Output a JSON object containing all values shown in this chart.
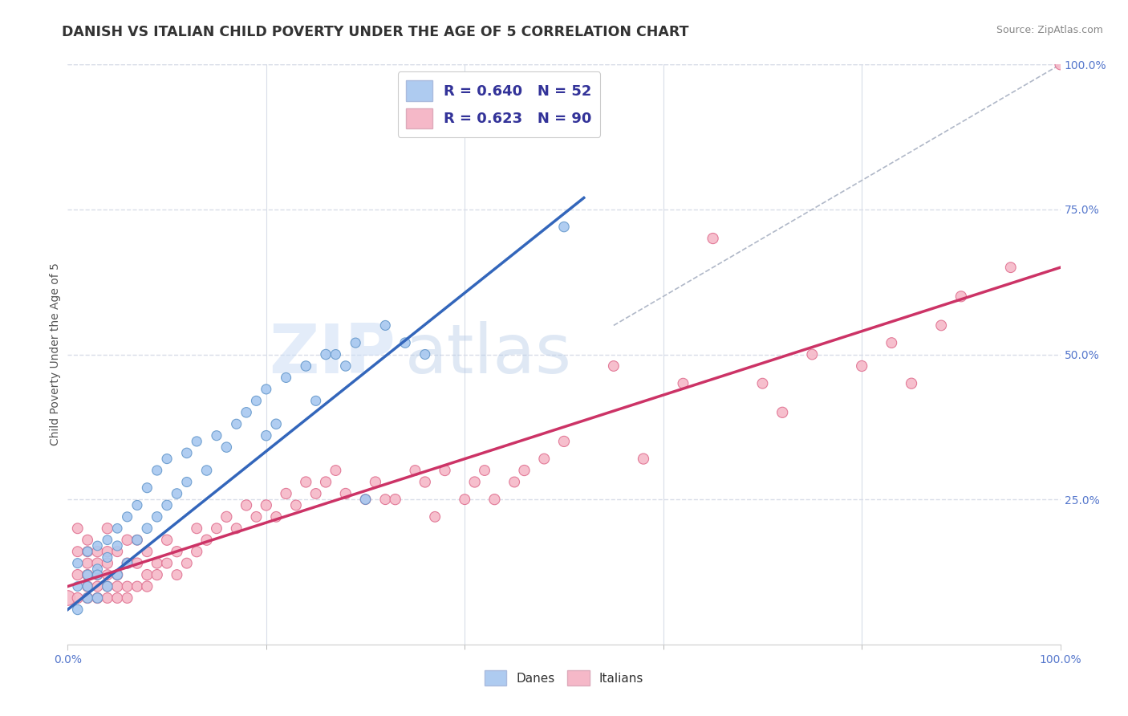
{
  "title": "DANISH VS ITALIAN CHILD POVERTY UNDER THE AGE OF 5 CORRELATION CHART",
  "source": "Source: ZipAtlas.com",
  "ylabel": "Child Poverty Under the Age of 5",
  "xlim": [
    0,
    1
  ],
  "ylim": [
    0,
    1
  ],
  "xtick_labels": [
    "0.0%",
    "100.0%"
  ],
  "xtick_positions": [
    0,
    1
  ],
  "ytick_labels": [
    "25.0%",
    "50.0%",
    "75.0%",
    "100.0%"
  ],
  "ytick_positions": [
    0.25,
    0.5,
    0.75,
    1.0
  ],
  "legend_items": [
    {
      "label": "R = 0.640   N = 52",
      "color": "#aecbf0"
    },
    {
      "label": "R = 0.623   N = 90",
      "color": "#f5b8c8"
    }
  ],
  "bottom_legend": [
    {
      "label": "Danes",
      "color": "#aecbf0"
    },
    {
      "label": "Italians",
      "color": "#f5b8c8"
    }
  ],
  "danes_color": "#a8c8f0",
  "danes_edge_color": "#6699cc",
  "italians_color": "#f5b8c8",
  "italians_edge_color": "#e07090",
  "danes_line_color": "#3366bb",
  "italians_line_color": "#cc3366",
  "ref_line_color": "#b0b8c8",
  "danes_line_x0": 0.0,
  "danes_line_x1": 0.52,
  "danes_line_y0": 0.06,
  "danes_line_y1": 0.77,
  "italians_line_x0": 0.0,
  "italians_line_x1": 1.0,
  "italians_line_y0": 0.1,
  "italians_line_y1": 0.65,
  "ref_line_x0": 0.55,
  "ref_line_x1": 1.0,
  "ref_line_y0": 0.55,
  "ref_line_y1": 1.0,
  "danes_scatter_x": [
    0.01,
    0.01,
    0.01,
    0.02,
    0.02,
    0.02,
    0.02,
    0.03,
    0.03,
    0.03,
    0.03,
    0.04,
    0.04,
    0.04,
    0.05,
    0.05,
    0.05,
    0.06,
    0.06,
    0.07,
    0.07,
    0.08,
    0.08,
    0.09,
    0.09,
    0.1,
    0.1,
    0.11,
    0.12,
    0.12,
    0.13,
    0.14,
    0.15,
    0.16,
    0.17,
    0.18,
    0.19,
    0.2,
    0.2,
    0.21,
    0.22,
    0.24,
    0.25,
    0.26,
    0.27,
    0.28,
    0.29,
    0.3,
    0.32,
    0.34,
    0.36,
    0.5
  ],
  "danes_scatter_y": [
    0.06,
    0.1,
    0.14,
    0.08,
    0.12,
    0.16,
    0.1,
    0.08,
    0.13,
    0.17,
    0.12,
    0.1,
    0.15,
    0.18,
    0.12,
    0.17,
    0.2,
    0.14,
    0.22,
    0.18,
    0.24,
    0.2,
    0.27,
    0.22,
    0.3,
    0.24,
    0.32,
    0.26,
    0.28,
    0.33,
    0.35,
    0.3,
    0.36,
    0.34,
    0.38,
    0.4,
    0.42,
    0.36,
    0.44,
    0.38,
    0.46,
    0.48,
    0.42,
    0.5,
    0.5,
    0.48,
    0.52,
    0.25,
    0.55,
    0.52,
    0.5,
    0.72
  ],
  "danes_scatter_sizes": [
    80,
    70,
    75,
    80,
    75,
    70,
    75,
    80,
    75,
    70,
    75,
    80,
    75,
    70,
    80,
    75,
    70,
    80,
    75,
    80,
    75,
    80,
    75,
    80,
    75,
    80,
    75,
    80,
    75,
    80,
    75,
    80,
    75,
    80,
    75,
    80,
    75,
    80,
    75,
    80,
    75,
    80,
    75,
    80,
    75,
    80,
    75,
    80,
    75,
    80,
    75,
    80
  ],
  "italians_scatter_x": [
    0.0,
    0.01,
    0.01,
    0.01,
    0.01,
    0.02,
    0.02,
    0.02,
    0.02,
    0.02,
    0.02,
    0.03,
    0.03,
    0.03,
    0.03,
    0.03,
    0.04,
    0.04,
    0.04,
    0.04,
    0.04,
    0.04,
    0.05,
    0.05,
    0.05,
    0.05,
    0.06,
    0.06,
    0.06,
    0.06,
    0.07,
    0.07,
    0.07,
    0.08,
    0.08,
    0.08,
    0.09,
    0.09,
    0.1,
    0.1,
    0.11,
    0.11,
    0.12,
    0.13,
    0.13,
    0.14,
    0.15,
    0.16,
    0.17,
    0.18,
    0.19,
    0.2,
    0.21,
    0.22,
    0.23,
    0.24,
    0.25,
    0.26,
    0.27,
    0.28,
    0.3,
    0.31,
    0.32,
    0.33,
    0.35,
    0.36,
    0.37,
    0.38,
    0.4,
    0.41,
    0.42,
    0.43,
    0.45,
    0.46,
    0.48,
    0.5,
    0.55,
    0.58,
    0.62,
    0.65,
    0.7,
    0.72,
    0.75,
    0.8,
    0.83,
    0.85,
    0.88,
    0.9,
    0.95,
    1.0
  ],
  "italians_scatter_y": [
    0.08,
    0.12,
    0.16,
    0.08,
    0.2,
    0.1,
    0.14,
    0.08,
    0.18,
    0.12,
    0.16,
    0.08,
    0.12,
    0.16,
    0.1,
    0.14,
    0.08,
    0.14,
    0.1,
    0.16,
    0.12,
    0.2,
    0.08,
    0.12,
    0.16,
    0.1,
    0.08,
    0.14,
    0.1,
    0.18,
    0.1,
    0.14,
    0.18,
    0.12,
    0.16,
    0.1,
    0.14,
    0.12,
    0.14,
    0.18,
    0.12,
    0.16,
    0.14,
    0.16,
    0.2,
    0.18,
    0.2,
    0.22,
    0.2,
    0.24,
    0.22,
    0.24,
    0.22,
    0.26,
    0.24,
    0.28,
    0.26,
    0.28,
    0.3,
    0.26,
    0.25,
    0.28,
    0.25,
    0.25,
    0.3,
    0.28,
    0.22,
    0.3,
    0.25,
    0.28,
    0.3,
    0.25,
    0.28,
    0.3,
    0.32,
    0.35,
    0.48,
    0.32,
    0.45,
    0.7,
    0.45,
    0.4,
    0.5,
    0.48,
    0.52,
    0.45,
    0.55,
    0.6,
    0.65,
    1.0
  ],
  "italians_scatter_sizes": [
    180,
    90,
    85,
    90,
    85,
    90,
    85,
    90,
    85,
    90,
    85,
    90,
    85,
    90,
    85,
    90,
    85,
    90,
    85,
    90,
    85,
    90,
    85,
    90,
    85,
    90,
    85,
    90,
    85,
    90,
    85,
    90,
    85,
    90,
    85,
    90,
    85,
    90,
    85,
    90,
    85,
    90,
    85,
    90,
    85,
    90,
    85,
    90,
    85,
    90,
    85,
    90,
    85,
    90,
    85,
    90,
    85,
    90,
    85,
    90,
    85,
    90,
    85,
    90,
    85,
    90,
    85,
    90,
    85,
    90,
    85,
    90,
    85,
    90,
    85,
    90,
    85,
    90,
    85,
    90,
    85,
    90,
    85,
    90,
    85,
    90,
    85,
    90,
    85,
    90
  ],
  "watermark_zip": "ZIP",
  "watermark_atlas": "atlas",
  "background_color": "#ffffff",
  "grid_color": "#d8dde8"
}
